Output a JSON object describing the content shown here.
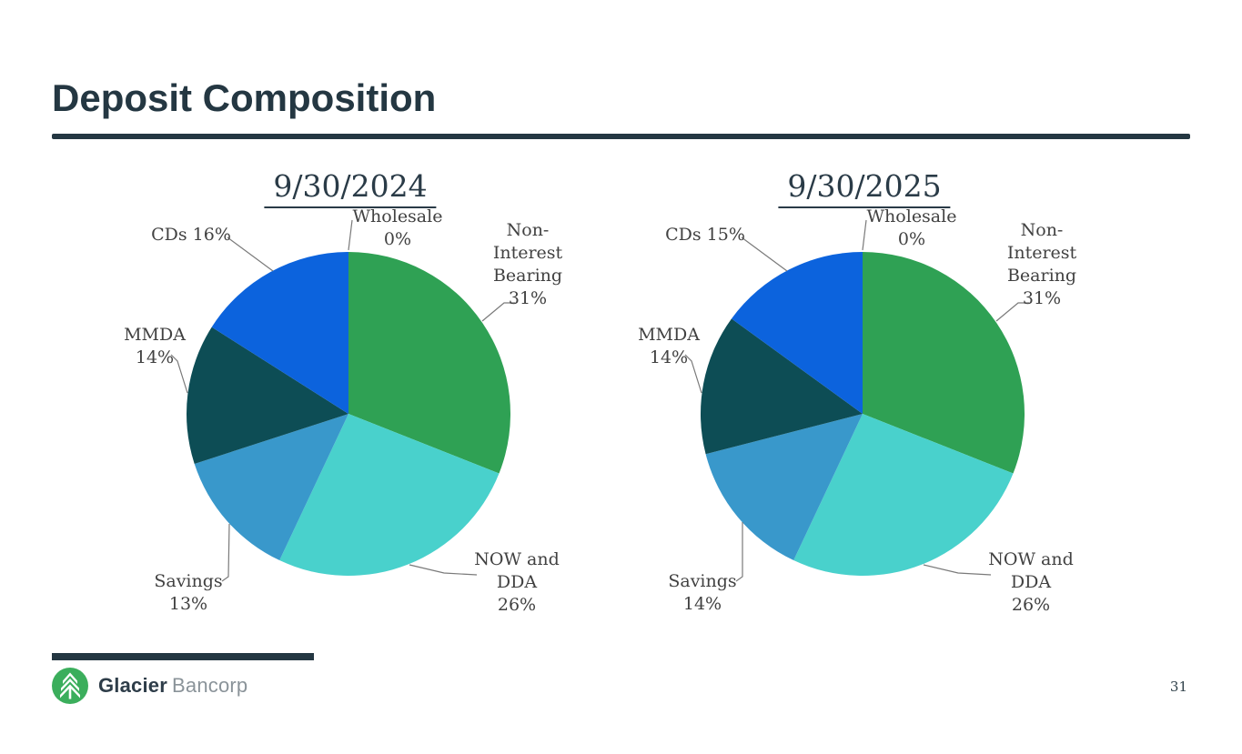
{
  "page": {
    "title": "Deposit Composition",
    "page_number": "31"
  },
  "logo": {
    "brand_bold": "Glacier",
    "brand_light": "Bancorp",
    "icon": "pine-tree-in-green-circle",
    "icon_color": "#3BAE5C"
  },
  "colors": {
    "header_dark": "#243742",
    "label_text": "#414141",
    "leader_line": "#7a7a7a"
  },
  "chart_data": [
    {
      "type": "pie",
      "title": "9/30/2024",
      "units": "percent",
      "start_angle": "12-o'clock",
      "direction": "clockwise",
      "slices": [
        {
          "id": "wholesale",
          "label": "Wholesale",
          "value": 0,
          "color": "#A5A5A5"
        },
        {
          "id": "non-interest-bearing",
          "label": "Non-Interest Bearing",
          "value": 31,
          "color": "#2FA154"
        },
        {
          "id": "now-dda",
          "label": "NOW and DDA",
          "value": 26,
          "color": "#49D1CC"
        },
        {
          "id": "savings",
          "label": "Savings",
          "value": 13,
          "color": "#3998CB"
        },
        {
          "id": "mmda",
          "label": "MMDA",
          "value": 14,
          "color": "#0D4D55"
        },
        {
          "id": "cds",
          "label": "CDs",
          "value": 16,
          "color": "#0C63DD"
        }
      ],
      "annotations": {
        "wholesale": [
          "Wholesale",
          "0%"
        ],
        "cds": [
          "CDs 16%"
        ],
        "non_interest_bearing": [
          "Non-",
          "Interest",
          "Bearing",
          "31%"
        ],
        "mmda": [
          "MMDA",
          "14%"
        ],
        "savings": [
          "Savings",
          "13%"
        ],
        "now_dda": [
          "NOW and",
          "DDA",
          "26%"
        ]
      }
    },
    {
      "type": "pie",
      "title": "9/30/2025",
      "units": "percent",
      "start_angle": "12-o'clock",
      "direction": "clockwise",
      "slices": [
        {
          "id": "wholesale",
          "label": "Wholesale",
          "value": 0,
          "color": "#A5A5A5"
        },
        {
          "id": "non-interest-bearing",
          "label": "Non-Interest Bearing",
          "value": 31,
          "color": "#2FA154"
        },
        {
          "id": "now-dda",
          "label": "NOW and DDA",
          "value": 26,
          "color": "#49D1CC"
        },
        {
          "id": "savings",
          "label": "Savings",
          "value": 14,
          "color": "#3998CB"
        },
        {
          "id": "mmda",
          "label": "MMDA",
          "value": 14,
          "color": "#0D4D55"
        },
        {
          "id": "cds",
          "label": "CDs",
          "value": 15,
          "color": "#0C63DD"
        }
      ],
      "annotations": {
        "wholesale": [
          "Wholesale",
          "0%"
        ],
        "cds": [
          "CDs 15%"
        ],
        "non_interest_bearing": [
          "Non-",
          "Interest",
          "Bearing",
          "31%"
        ],
        "mmda": [
          "MMDA",
          "14%"
        ],
        "savings": [
          "Savings",
          "14%"
        ],
        "now_dda": [
          "NOW and",
          "DDA",
          "26%"
        ]
      }
    }
  ]
}
